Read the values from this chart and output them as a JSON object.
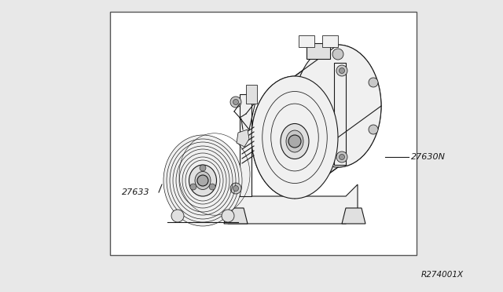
{
  "background_color": "#e8e8e8",
  "box_color": "#ffffff",
  "box_border_color": "#444444",
  "label_27630N": "27630N",
  "label_27633": "27633",
  "ref_code": "R274001X",
  "line_color": "#1a1a1a",
  "line_color_light": "#555555"
}
